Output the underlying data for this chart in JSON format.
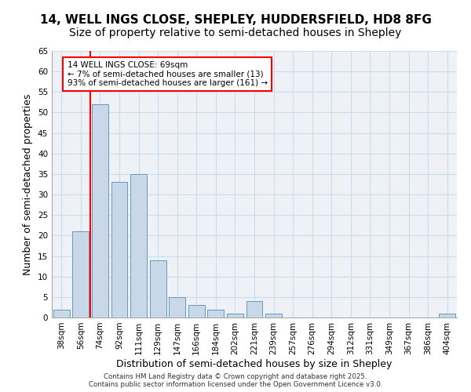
{
  "title_line1": "14, WELL INGS CLOSE, SHEPLEY, HUDDERSFIELD, HD8 8FG",
  "title_line2": "Size of property relative to semi-detached houses in Shepley",
  "xlabel": "Distribution of semi-detached houses by size in Shepley",
  "ylabel": "Number of semi-detached properties",
  "categories": [
    "38sqm",
    "56sqm",
    "74sqm",
    "92sqm",
    "111sqm",
    "129sqm",
    "147sqm",
    "166sqm",
    "184sqm",
    "202sqm",
    "221sqm",
    "239sqm",
    "257sqm",
    "276sqm",
    "294sqm",
    "312sqm",
    "331sqm",
    "349sqm",
    "367sqm",
    "386sqm",
    "404sqm"
  ],
  "values": [
    2,
    21,
    52,
    33,
    35,
    14,
    5,
    3,
    2,
    1,
    4,
    1,
    0,
    0,
    0,
    0,
    0,
    0,
    0,
    0,
    1
  ],
  "bar_color": "#c8d8e8",
  "bar_edge_color": "#6699bb",
  "grid_color": "#ccddee",
  "background_color": "#eef2f7",
  "annotation_text": "14 WELL INGS CLOSE: 69sqm\n← 7% of semi-detached houses are smaller (13)\n93% of semi-detached houses are larger (161) →",
  "annotation_box_color": "white",
  "annotation_box_edge": "red",
  "vline_x_index": 1.5,
  "vline_color": "red",
  "ylim": [
    0,
    65
  ],
  "yticks": [
    0,
    5,
    10,
    15,
    20,
    25,
    30,
    35,
    40,
    45,
    50,
    55,
    60,
    65
  ],
  "footer_text": "Contains HM Land Registry data © Crown copyright and database right 2025.\nContains public sector information licensed under the Open Government Licence v3.0.",
  "title_fontsize": 11,
  "subtitle_fontsize": 10,
  "tick_fontsize": 7.5,
  "ylabel_fontsize": 9,
  "xlabel_fontsize": 9,
  "annotation_fontsize": 7.5
}
